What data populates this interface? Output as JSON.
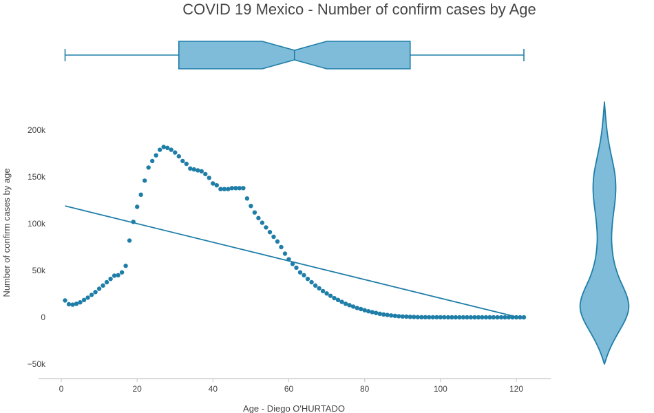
{
  "chart_data": {
    "type": "scatter",
    "title": "COVID 19 Mexico - Number of confirm cases by Age",
    "xlabel": "Age - Diego O'HURTADO",
    "ylabel": "Number of confirm cases by age",
    "xlim": [
      -6,
      130
    ],
    "ylim": [
      -55000,
      230000
    ],
    "x_ticks": [
      0,
      20,
      40,
      60,
      80,
      100,
      120
    ],
    "x_tick_labels": [
      "0",
      "20",
      "40",
      "60",
      "80",
      "100",
      "120"
    ],
    "y_ticks": [
      -50000,
      0,
      50000,
      100000,
      150000,
      200000
    ],
    "y_tick_labels": [
      "−50k",
      "0",
      "50k",
      "100k",
      "150k",
      "200k"
    ],
    "colors": {
      "marker": "#1f7ea8",
      "fill": "#7fbcd9",
      "line": "#1f7ea8",
      "axis": "#c4c4c4",
      "text": "#444444"
    },
    "series": [
      {
        "kind": "markers",
        "x": [
          1,
          2,
          3,
          4,
          5,
          6,
          7,
          8,
          9,
          10,
          11,
          12,
          13,
          14,
          15,
          16,
          17,
          18,
          19,
          20,
          21,
          22,
          23,
          24,
          25,
          26,
          27,
          28,
          29,
          30,
          31,
          32,
          33,
          34,
          35,
          36,
          37,
          38,
          39,
          40,
          41,
          42,
          43,
          44,
          45,
          46,
          47,
          48,
          49,
          50,
          51,
          52,
          53,
          54,
          55,
          56,
          57,
          58,
          59,
          60,
          61,
          62,
          63,
          64,
          65,
          66,
          67,
          68,
          69,
          70,
          71,
          72,
          73,
          74,
          75,
          76,
          77,
          78,
          79,
          80,
          81,
          82,
          83,
          84,
          85,
          86,
          87,
          88,
          89,
          90,
          91,
          92,
          93,
          94,
          95,
          96,
          97,
          98,
          99,
          100,
          101,
          102,
          103,
          104,
          105,
          106,
          107,
          108,
          109,
          110,
          111,
          112,
          113,
          114,
          115,
          116,
          117,
          118,
          119,
          120,
          121,
          122
        ],
        "y": [
          18000,
          14000,
          13500,
          14500,
          16000,
          18500,
          21000,
          24000,
          27000,
          30500,
          34000,
          37500,
          41000,
          44500,
          45000,
          48000,
          55000,
          82000,
          102000,
          118000,
          131000,
          146000,
          160000,
          167000,
          173000,
          179000,
          182000,
          181000,
          179000,
          176000,
          172000,
          167000,
          164000,
          159000,
          158000,
          157000,
          156000,
          153000,
          149000,
          143000,
          141000,
          137000,
          137000,
          137000,
          138000,
          138000,
          138000,
          138000,
          127000,
          119000,
          112000,
          106000,
          101000,
          96000,
          91000,
          86000,
          81000,
          75000,
          68000,
          62000,
          57000,
          53000,
          48000,
          45000,
          41000,
          37500,
          34000,
          31000,
          28000,
          25500,
          23000,
          20500,
          18500,
          16500,
          14500,
          13000,
          11500,
          10000,
          8800,
          7600,
          6500,
          5500,
          4600,
          3800,
          3100,
          2500,
          2000,
          1600,
          1200,
          900,
          700,
          500,
          350,
          250,
          180,
          130,
          100,
          80,
          60,
          50,
          40,
          35,
          30,
          25,
          20,
          20,
          20,
          20,
          20,
          20,
          20,
          20,
          20,
          20,
          20,
          20,
          20,
          20,
          20,
          20,
          20,
          20
        ]
      },
      {
        "kind": "line",
        "x": [
          1,
          122
        ],
        "y": [
          119000,
          -1500
        ]
      }
    ],
    "marginals": {
      "x_box": {
        "min": 1,
        "q1": 31,
        "median": 61.5,
        "notch_low": 53,
        "notch_high": 70,
        "q3": 92,
        "max": 122
      },
      "y_violin": {
        "y": [
          -50000,
          -40000,
          -30000,
          -20000,
          -10000,
          0,
          10000,
          20000,
          30000,
          40000,
          50000,
          60000,
          70000,
          80000,
          90000,
          100000,
          110000,
          120000,
          130000,
          140000,
          150000,
          160000,
          170000,
          180000,
          190000,
          200000,
          210000,
          220000,
          230000
        ],
        "width": [
          0.0,
          0.12,
          0.28,
          0.48,
          0.7,
          0.9,
          1.0,
          0.95,
          0.8,
          0.62,
          0.48,
          0.38,
          0.32,
          0.29,
          0.29,
          0.32,
          0.36,
          0.41,
          0.45,
          0.46,
          0.44,
          0.38,
          0.3,
          0.22,
          0.15,
          0.1,
          0.06,
          0.03,
          0.0
        ]
      }
    }
  }
}
